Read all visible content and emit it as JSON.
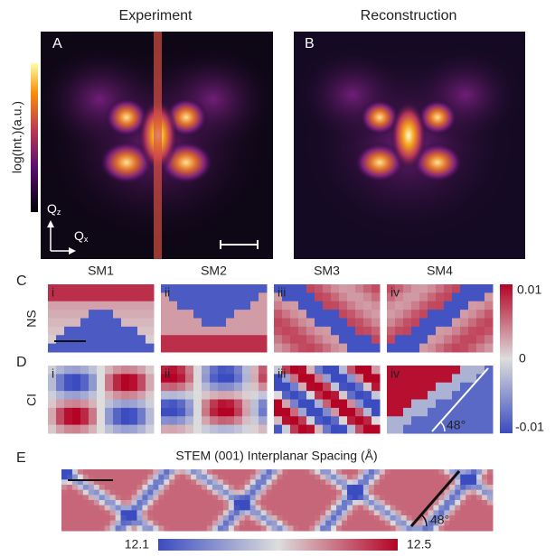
{
  "panel_a": {
    "label": "A",
    "title": "Experiment",
    "colorbar_label": "log(Int.)(a.u.)",
    "axis_z": {
      "symbol": "Q",
      "sub": "z"
    },
    "axis_x": {
      "symbol": "Q",
      "sub": "x"
    }
  },
  "panel_b": {
    "label": "B",
    "title": "Reconstruction"
  },
  "panel_c": {
    "label": "C",
    "row_label": "NS",
    "columns": [
      "SM1",
      "SM2",
      "SM3",
      "SM4"
    ],
    "subpanels": [
      "i",
      "ii",
      "iii",
      "iv"
    ]
  },
  "panel_d": {
    "label": "D",
    "row_label": "CI",
    "subpanels": [
      "i",
      "ii",
      "iii",
      "iv"
    ],
    "angle": "48°"
  },
  "colorbar_cd": {
    "ticks": [
      "0.01",
      "0",
      "-0.01"
    ]
  },
  "panel_e": {
    "label": "E",
    "title": "STEM (001) Interplanar Spacing (Å)",
    "angle": "48°",
    "colorbar": {
      "min": "12.1",
      "max": "12.5"
    }
  }
}
